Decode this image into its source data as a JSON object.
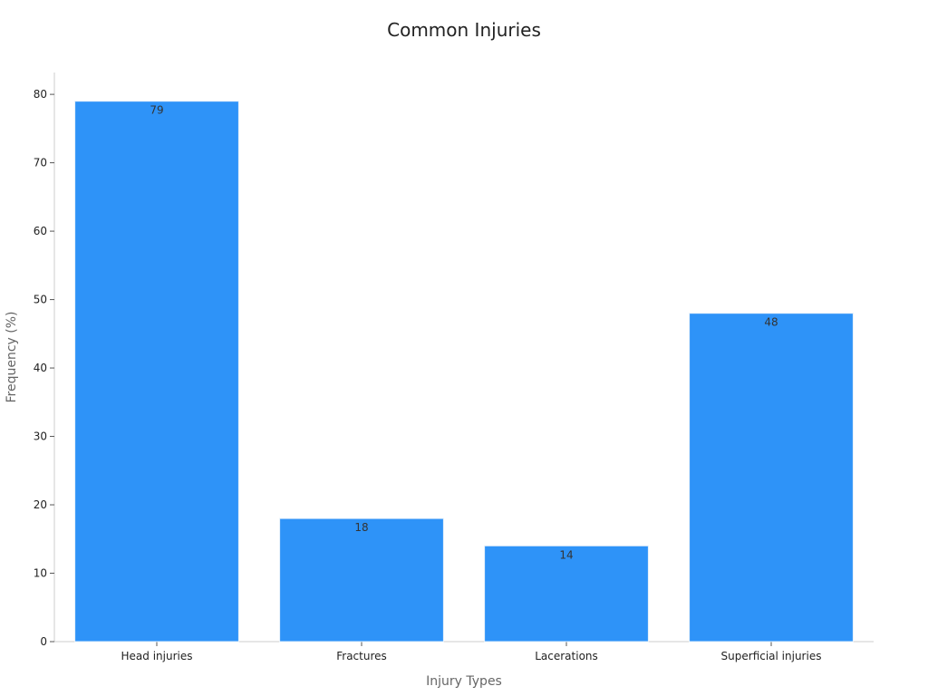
{
  "chart_data": {
    "type": "bar",
    "title": "Common Injuries",
    "xlabel": "Injury Types",
    "ylabel": "Frequency (%)",
    "categories": [
      "Head injuries",
      "Fractures",
      "Lacerations",
      "Superficial injuries"
    ],
    "values": [
      79,
      18,
      14,
      48
    ],
    "data_labels": [
      "79",
      "18",
      "14",
      "48"
    ],
    "ylim": [
      0,
      83
    ],
    "yticks": [
      0,
      10,
      20,
      30,
      40,
      50,
      60,
      70,
      80
    ],
    "grid": false,
    "legend": "none",
    "bar_color": "#2E93F8"
  }
}
